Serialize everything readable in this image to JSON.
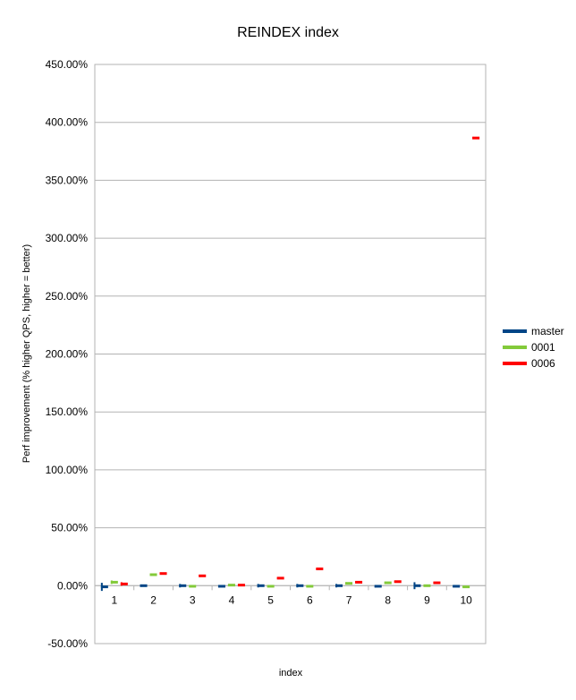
{
  "chart_data": {
    "type": "scatter",
    "title": "REINDEX index",
    "xlabel": "index",
    "ylabel": "Perf improvement (% higher QPS, higher = better)",
    "categories": [
      "1",
      "2",
      "3",
      "4",
      "5",
      "6",
      "7",
      "8",
      "9",
      "10"
    ],
    "ylim": [
      -50,
      450
    ],
    "yticks": [
      -50,
      0,
      50,
      100,
      150,
      200,
      250,
      300,
      350,
      400,
      450
    ],
    "ytick_labels": [
      "-50.00%",
      "0.00%",
      "50.00%",
      "100.00%",
      "150.00%",
      "200.00%",
      "250.00%",
      "300.00%",
      "350.00%",
      "400.00%",
      "450.00%"
    ],
    "grid": true,
    "legend_position": "right",
    "series": [
      {
        "name": "master",
        "color": "#004586",
        "values": [
          -1.0,
          0.0,
          0.0,
          -0.5,
          0.0,
          0.0,
          0.0,
          -0.5,
          0.0,
          -0.5
        ],
        "err": [
          3.5,
          1.0,
          1.5,
          1.0,
          1.5,
          1.5,
          1.5,
          1.0,
          3.0,
          0.5
        ]
      },
      {
        "name": "0001",
        "color": "#83ca3a",
        "values": [
          3.0,
          9.5,
          -0.5,
          0.5,
          -0.5,
          -0.5,
          2.0,
          2.5,
          0.0,
          -1.0
        ],
        "err": [
          1.5,
          1.0,
          0.5,
          1.0,
          0.5,
          0.5,
          1.0,
          1.0,
          0.5,
          0.5
        ]
      },
      {
        "name": "0006",
        "color": "#ff0000",
        "values": [
          1.5,
          10.5,
          8.5,
          0.5,
          6.5,
          14.5,
          3.0,
          3.5,
          2.5,
          386.5
        ],
        "err": [
          1.5,
          1.0,
          1.0,
          0.5,
          0.5,
          0.5,
          0.5,
          0.5,
          0.5,
          1.0
        ]
      }
    ]
  }
}
